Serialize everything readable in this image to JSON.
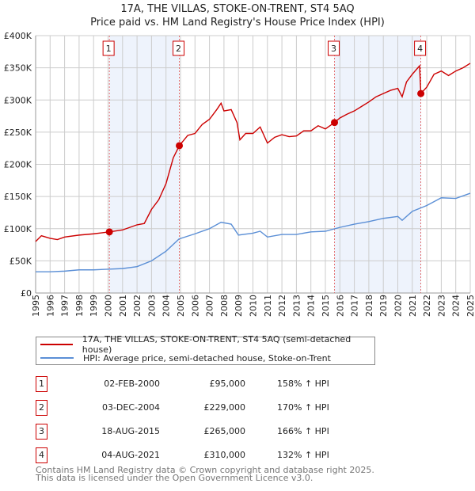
{
  "chart_data": {
    "type": "line",
    "title": "17A, THE VILLAS, STOKE-ON-TRENT, ST4 5AQ",
    "subtitle": "Price paid vs. HM Land Registry's House Price Index (HPI)",
    "xlim": [
      1995,
      2025
    ],
    "ylim": [
      0,
      400000
    ],
    "x_ticks": [
      "1995",
      "1996",
      "1997",
      "1998",
      "1999",
      "2000",
      "2001",
      "2002",
      "2003",
      "2004",
      "2005",
      "2006",
      "2007",
      "2008",
      "2009",
      "2010",
      "2011",
      "2012",
      "2013",
      "2014",
      "2015",
      "2016",
      "2017",
      "2018",
      "2019",
      "2020",
      "2021",
      "2022",
      "2023",
      "2024",
      "2025"
    ],
    "y_ticks": [
      {
        "v": 0,
        "label": "£0"
      },
      {
        "v": 50000,
        "label": "£50K"
      },
      {
        "v": 100000,
        "label": "£100K"
      },
      {
        "v": 150000,
        "label": "£150K"
      },
      {
        "v": 200000,
        "label": "£200K"
      },
      {
        "v": 250000,
        "label": "£250K"
      },
      {
        "v": 300000,
        "label": "£300K"
      },
      {
        "v": 350000,
        "label": "£350K"
      },
      {
        "v": 400000,
        "label": "£400K"
      }
    ],
    "grid": true,
    "series": [
      {
        "name": "17A, THE VILLAS, STOKE-ON-TRENT, ST4 5AQ (semi-detached house)",
        "color": "#cc0000",
        "x": [
          1995,
          1995.4,
          1996,
          1996.5,
          1997,
          1998,
          1999,
          2000.09,
          2001,
          2002,
          2002.5,
          2003,
          2003.5,
          2004,
          2004.5,
          2004.92,
          2005.5,
          2006,
          2006.5,
          2007,
          2007.5,
          2007.8,
          2008,
          2008.5,
          2008.9,
          2009.1,
          2009.5,
          2010,
          2010.5,
          2011,
          2011.5,
          2012,
          2012.5,
          2013,
          2013.5,
          2014,
          2014.5,
          2015,
          2015.63,
          2016,
          2016.5,
          2017,
          2017.5,
          2018,
          2018.5,
          2019,
          2019.5,
          2020,
          2020.3,
          2020.6,
          2021,
          2021.5,
          2021.59,
          2022,
          2022.5,
          2023,
          2023.5,
          2024,
          2024.5,
          2025
        ],
        "y": [
          80000,
          89000,
          85000,
          83000,
          87000,
          90000,
          92000,
          95000,
          98000,
          106000,
          108000,
          130000,
          145000,
          170000,
          210000,
          229000,
          245000,
          248000,
          262000,
          270000,
          285000,
          295000,
          283000,
          285000,
          265000,
          238000,
          248000,
          248000,
          258000,
          233000,
          242000,
          246000,
          243000,
          244000,
          252000,
          252000,
          260000,
          255000,
          265000,
          272000,
          278000,
          283000,
          290000,
          297000,
          305000,
          310000,
          315000,
          318000,
          305000,
          328000,
          340000,
          353000,
          310000,
          320000,
          340000,
          345000,
          338000,
          345000,
          350000,
          357000
        ]
      },
      {
        "name": "HPI: Average price, semi-detached house, Stoke-on-Trent",
        "color": "#5b8fd6",
        "x": [
          1995,
          1996,
          1997,
          1998,
          1999,
          2000,
          2001,
          2002,
          2003,
          2004,
          2004.9,
          2006,
          2007,
          2007.8,
          2008.5,
          2009,
          2010,
          2010.5,
          2011,
          2012,
          2013,
          2014,
          2015,
          2016,
          2017,
          2018,
          2019,
          2020,
          2020.3,
          2021,
          2022,
          2023,
          2024,
          2025
        ],
        "y": [
          33000,
          33000,
          34000,
          36000,
          36000,
          37000,
          38000,
          41000,
          50000,
          65000,
          84000,
          92000,
          100000,
          110000,
          107000,
          90000,
          93000,
          96000,
          87000,
          91000,
          91000,
          95000,
          96000,
          102000,
          107000,
          111000,
          116000,
          119000,
          113000,
          127000,
          136000,
          148000,
          147000,
          155000
        ]
      }
    ],
    "sales": [
      {
        "n": "1",
        "x": 2000.09,
        "y": 95000,
        "date": "02-FEB-2000",
        "price": "£95,000",
        "hpi": "158% ↑ HPI"
      },
      {
        "n": "2",
        "x": 2004.92,
        "y": 229000,
        "date": "03-DEC-2004",
        "price": "£229,000",
        "hpi": "170% ↑ HPI"
      },
      {
        "n": "3",
        "x": 2015.63,
        "y": 265000,
        "date": "18-AUG-2015",
        "price": "£265,000",
        "hpi": "166% ↑ HPI"
      },
      {
        "n": "4",
        "x": 2021.59,
        "y": 310000,
        "date": "04-AUG-2021",
        "price": "£310,000",
        "hpi": "132% ↑ HPI"
      }
    ],
    "shaded_ranges": [
      [
        2000.09,
        2004.92
      ],
      [
        2015.63,
        2021.59
      ]
    ]
  },
  "legend": {
    "red": "17A, THE VILLAS, STOKE-ON-TRENT, ST4 5AQ (semi-detached house)",
    "blue": "HPI: Average price, semi-detached house, Stoke-on-Trent"
  },
  "footer": {
    "line1": "Contains HM Land Registry data © Crown copyright and database right 2025.",
    "line2": "This data is licensed under the Open Government Licence v3.0."
  }
}
